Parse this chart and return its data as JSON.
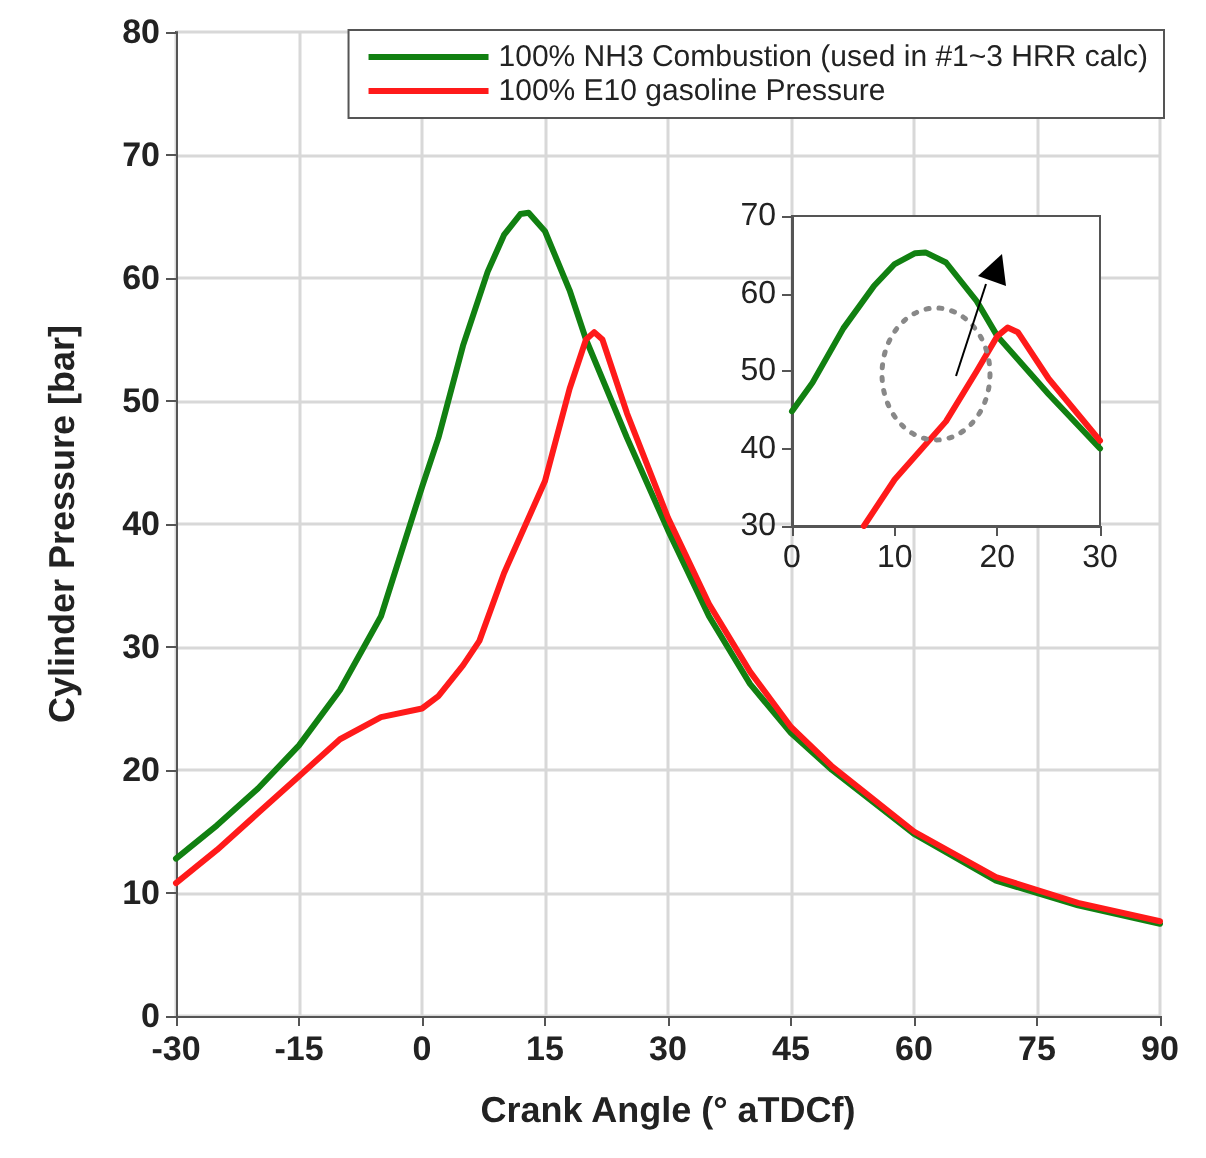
{
  "chart_data": [
    {
      "type": "line",
      "xlabel": "Crank Angle (° aTDCf)",
      "ylabel": "Cylinder Pressure [bar]",
      "xlim": [
        -30,
        90
      ],
      "xticks": [
        -30,
        -15,
        0,
        15,
        30,
        45,
        60,
        75,
        90
      ],
      "ylim": [
        0,
        80
      ],
      "yticks": [
        0,
        10,
        20,
        30,
        40,
        50,
        60,
        70,
        80
      ],
      "grid": true,
      "legend": "top right",
      "marker": "none",
      "line_style": "solid",
      "series": [
        {
          "name": "100% NH3 Combustion (used in #1~3 HRR calc)",
          "color": "#118011",
          "x": [
            -30,
            -25,
            -20,
            -15,
            -10,
            -5,
            0,
            2,
            5,
            8,
            10,
            12,
            13,
            15,
            18,
            20,
            25,
            30,
            35,
            40,
            45,
            50,
            60,
            70,
            80,
            90
          ],
          "values": [
            12.8,
            15.5,
            18.5,
            22,
            26.5,
            32.5,
            43,
            47,
            54.5,
            60.5,
            63.5,
            65.2,
            65.3,
            63.8,
            59,
            55,
            47,
            39.5,
            32.5,
            27,
            23,
            20,
            14.8,
            11,
            9,
            7.5
          ]
        },
        {
          "name": "100% E10 gasoline Pressure",
          "color": "#ff1a1a",
          "x": [
            -30,
            -25,
            -20,
            -15,
            -10,
            -5,
            0,
            2,
            5,
            7,
            10,
            15,
            18,
            20,
            21,
            22,
            25,
            30,
            35,
            40,
            45,
            50,
            60,
            70,
            80,
            90
          ],
          "values": [
            10.8,
            13.5,
            16.5,
            19.5,
            22.5,
            24.3,
            25,
            26,
            28.5,
            30.5,
            36,
            43.5,
            51,
            55,
            55.6,
            55,
            49,
            40.5,
            33.5,
            28,
            23.5,
            20.3,
            15,
            11.3,
            9.2,
            7.7
          ]
        }
      ]
    },
    {
      "type": "line",
      "xlim": [
        0,
        30
      ],
      "xticks": [
        0,
        10,
        20,
        30
      ],
      "ylim": [
        30,
        70
      ],
      "yticks": [
        30,
        40,
        50,
        60,
        70
      ],
      "grid": false,
      "legend": false,
      "marker": "none",
      "line_style": "solid",
      "series": [
        {
          "color": "#118011",
          "x": [
            0,
            2,
            5,
            8,
            10,
            12,
            13,
            15,
            18,
            20,
            25,
            30
          ],
          "values": [
            44.8,
            48.5,
            55.5,
            61,
            63.8,
            65.2,
            65.3,
            64,
            59,
            54.5,
            47,
            40
          ]
        },
        {
          "color": "#ff1a1a",
          "x": [
            7,
            10,
            15,
            18,
            20,
            21,
            22,
            25,
            30
          ],
          "values": [
            30,
            36,
            43.5,
            50,
            54.5,
            55.6,
            55,
            49,
            41
          ]
        }
      ]
    }
  ]
}
